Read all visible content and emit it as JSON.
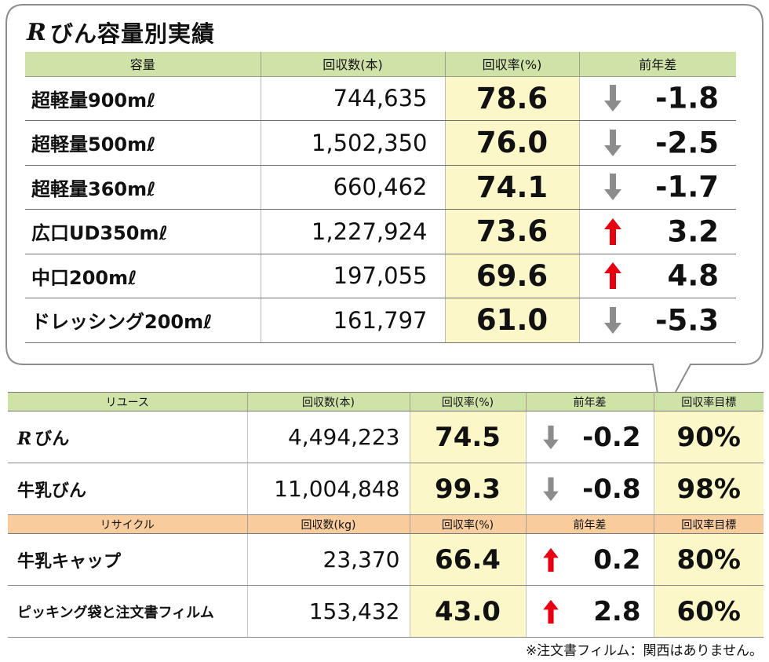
{
  "title": {
    "mark": "R",
    "text": "びん容量別実績"
  },
  "bottle_table": {
    "headers": [
      "容量",
      "回収数(本)",
      "回収率(%)",
      "前年差"
    ],
    "rows": [
      {
        "name": "超軽量900mℓ",
        "count": "744,635",
        "rate": "78.6",
        "trend": "down",
        "diff": "-1.8"
      },
      {
        "name": "超軽量500mℓ",
        "count": "1,502,350",
        "rate": "76.0",
        "trend": "down",
        "diff": "-2.5"
      },
      {
        "name": "超軽量360mℓ",
        "count": "660,462",
        "rate": "74.1",
        "trend": "down",
        "diff": "-1.7"
      },
      {
        "name": "広口UD350mℓ",
        "count": "1,227,924",
        "rate": "73.6",
        "trend": "up",
        "diff": "3.2"
      },
      {
        "name": "中口200mℓ",
        "count": "197,055",
        "rate": "69.6",
        "trend": "up",
        "diff": "4.8"
      },
      {
        "name": "ドレッシング200mℓ",
        "count": "161,797",
        "rate": "61.0",
        "trend": "down",
        "diff": "-5.3"
      }
    ]
  },
  "reuse_table": {
    "headers": [
      "リユース",
      "回収数(本)",
      "回収率(%)",
      "前年差",
      "回収率目標"
    ],
    "rows": [
      {
        "mark": "R",
        "name": "びん",
        "count": "4,494,223",
        "rate": "74.5",
        "trend": "down",
        "diff": "-0.2",
        "target": "90%"
      },
      {
        "mark": "",
        "name": "牛乳びん",
        "count": "11,004,848",
        "rate": "99.3",
        "trend": "down",
        "diff": "-0.8",
        "target": "98%"
      }
    ]
  },
  "recycle_table": {
    "headers": [
      "リサイクル",
      "回収数(kg)",
      "回収率(%)",
      "前年差",
      "回収率目標"
    ],
    "rows": [
      {
        "name": "牛乳キャップ",
        "count": "23,370",
        "rate": "66.4",
        "trend": "up",
        "diff": "0.2",
        "target": "80%"
      },
      {
        "name": "ピッキング袋と注文書フィルム",
        "count": "153,432",
        "rate": "43.0",
        "trend": "up",
        "diff": "2.8",
        "target": "60%"
      }
    ]
  },
  "footnote": "※注文書フィルム：関西はありません。",
  "colors": {
    "up_arrow": "#e60012",
    "down_arrow": "#8c8c8c",
    "header_green": "#cfe3a8",
    "header_orange": "#f9cc9d",
    "highlight": "#fcf7c9"
  }
}
